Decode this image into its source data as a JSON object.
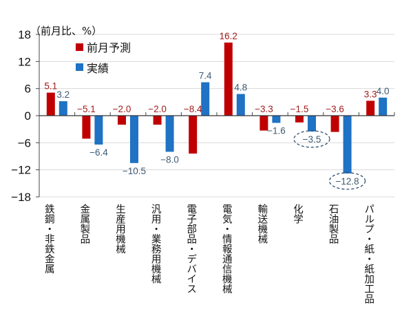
{
  "chart_data": {
    "type": "bar",
    "title": "",
    "unit_label": "（前月比、%）",
    "xlabel": "",
    "ylabel": "前月比、%",
    "ylim": [
      -18,
      18
    ],
    "yticks": [
      18,
      12,
      6,
      0,
      -6,
      -12,
      -18
    ],
    "ytick_labels": [
      "18",
      "12",
      "6",
      "0",
      "−6",
      "−12",
      "−18"
    ],
    "grid": true,
    "legend_position": "top-left",
    "categories": [
      "鉄鋼・非鉄金属",
      "金属製品",
      "生産用機械",
      "汎用・業務用機械",
      "電子部品・デバイス",
      "電気・情報通信機械",
      "輸送機械",
      "化学",
      "石油製品",
      "パルプ・紙・紙加工品"
    ],
    "series": [
      {
        "name": "前月予測",
        "color": "#c00000",
        "values": [
          5.1,
          -5.1,
          -2.0,
          -2.0,
          -8.4,
          16.2,
          -3.3,
          -1.5,
          -3.6,
          3.3
        ],
        "labels": [
          "5.1",
          "−5.1",
          "−2.0",
          "−2.0",
          "−8.4",
          "16.2",
          "−3.3",
          "−1.5",
          "−3.6",
          "3.3"
        ]
      },
      {
        "name": "実績",
        "color": "#1f72c4",
        "values": [
          3.2,
          -6.4,
          -10.5,
          -8.0,
          7.4,
          4.8,
          -1.6,
          -3.5,
          -12.8,
          4.0
        ],
        "labels": [
          "3.2",
          "−6.4",
          "−10.5",
          "−8.0",
          "7.4",
          "4.8",
          "−1.6",
          "−3.5",
          "−12.8",
          "4.0"
        ]
      }
    ],
    "annotations": [
      {
        "type": "dashed-ellipse",
        "series": "実績",
        "category": "化学",
        "text": "−3.5"
      },
      {
        "type": "dashed-ellipse",
        "series": "実績",
        "category": "石油製品",
        "text": "−12.8"
      }
    ]
  }
}
